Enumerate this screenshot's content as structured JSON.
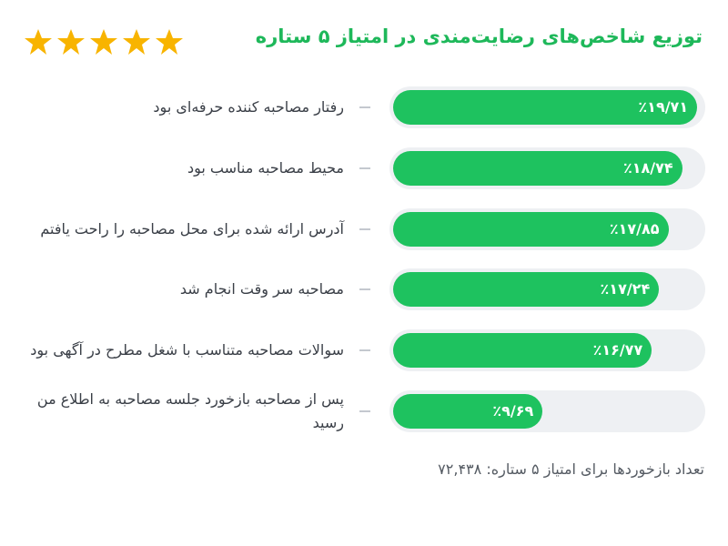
{
  "chart_data": {
    "type": "hbar",
    "title": "توزیع شاخص‌های رضایت‌مندی در امتیاز ۵ ستاره",
    "categories": [
      "رفتار مصاحبه کننده حرفه‌ای بود",
      "محیط مصاحبه مناسب بود",
      "آدرس ارائه شده برای محل مصاحبه را راحت یافتم",
      "مصاحبه سر وقت انجام شد",
      "سوالات مصاحبه متناسب با شغل مطرح در آگهی بود",
      "پس از مصاحبه بازخورد جلسه مصاحبه به اطلاع من رسید"
    ],
    "values": [
      19.71,
      18.74,
      17.85,
      17.24,
      16.77,
      9.69
    ],
    "value_labels": [
      "٪۱۹/۷۱",
      "٪۱۸/۷۴",
      "٪۱۷/۸۵",
      "٪۱۷/۲۴",
      "٪۱۶/۷۷",
      "٪۹/۶۹"
    ],
    "color": "#1ec25f",
    "xlim": [
      0,
      20
    ],
    "annotation": "تعداد بازخوردها برای امتیاز ۵ ستاره: ۷۲,۴۳۸"
  }
}
